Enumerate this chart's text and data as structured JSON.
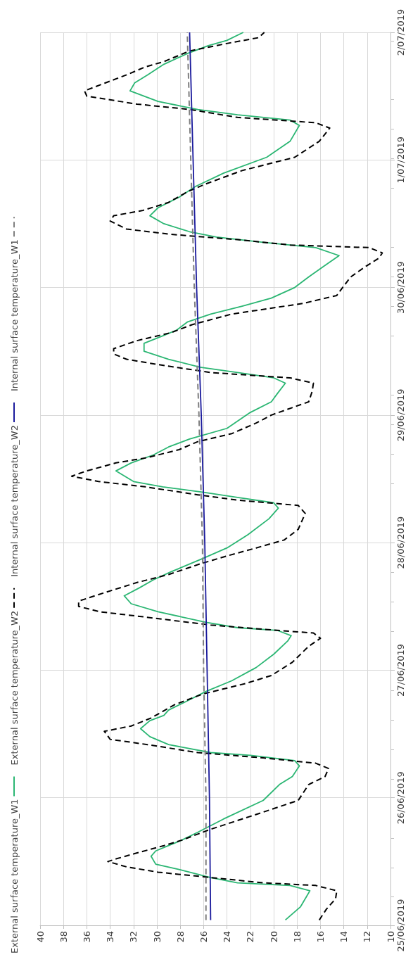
{
  "chart_data": {
    "type": "line",
    "orientation": "horizontal",
    "xlim": [
      40,
      10
    ],
    "xticks": [
      40,
      38,
      36,
      34,
      32,
      30,
      28,
      26,
      24,
      22,
      20,
      18,
      16,
      14,
      12,
      10
    ],
    "ylim": [
      "2019-06-25",
      "2019-07-02"
    ],
    "yticks": [
      {
        "value": "2019-06-25",
        "label": "25/06/2019"
      },
      {
        "value": "2019-06-26",
        "label": "26/06/2019"
      },
      {
        "value": "2019-06-27",
        "label": "27/06/2019"
      },
      {
        "value": "2019-06-28",
        "label": "28/06/2019"
      },
      {
        "value": "2019-06-29",
        "label": "29/06/2019"
      },
      {
        "value": "2019-06-30",
        "label": "30/06/2019"
      },
      {
        "value": "2019-07-01",
        "label": "1/07/2019"
      },
      {
        "value": "2019-07-02",
        "label": "2/07/2019"
      }
    ],
    "grid": true,
    "legend": "left",
    "marker": "none",
    "series": [
      {
        "name": "External surface temperature_W1",
        "color": "#2bb673",
        "line_style": "solid",
        "x": [
          "2019-06-25T01:00",
          "2019-06-25T03:30",
          "2019-06-25T06:30",
          "2019-06-25T07:30",
          "2019-06-25T08:00",
          "2019-06-25T09:00",
          "2019-06-25T10:30",
          "2019-06-25T11:30",
          "2019-06-25T13:00",
          "2019-06-25T14:00",
          "2019-06-25T15:00",
          "2019-06-25T16:00",
          "2019-06-25T17:30",
          "2019-06-25T20:00",
          "2019-06-25T23:30",
          "2019-06-26T02:30",
          "2019-06-26T04:00",
          "2019-06-26T06:00",
          "2019-06-26T07:00",
          "2019-06-26T08:00",
          "2019-06-26T08:30",
          "2019-06-26T10:00",
          "2019-06-26T11:30",
          "2019-06-26T13:00",
          "2019-06-26T14:30",
          "2019-06-26T15:30",
          "2019-06-26T16:30",
          "2019-06-26T18:00",
          "2019-06-26T20:00",
          "2019-06-26T22:00",
          "2019-06-27T00:30",
          "2019-06-27T03:00",
          "2019-06-27T05:30",
          "2019-06-27T06:30",
          "2019-06-27T07:30",
          "2019-06-27T08:00",
          "2019-06-27T09:00",
          "2019-06-27T11:00",
          "2019-06-27T12:30",
          "2019-06-27T14:00",
          "2019-06-27T15:30",
          "2019-06-27T17:00",
          "2019-06-27T18:30",
          "2019-06-27T21:00",
          "2019-06-27T23:00",
          "2019-06-28T01:30",
          "2019-06-28T04:30",
          "2019-06-28T06:30",
          "2019-06-28T07:30",
          "2019-06-28T08:30",
          "2019-06-28T09:30",
          "2019-06-28T10:30",
          "2019-06-28T11:30",
          "2019-06-28T13:30",
          "2019-06-28T15:00",
          "2019-06-28T16:30",
          "2019-06-28T18:00",
          "2019-06-28T19:30",
          "2019-06-28T21:30",
          "2019-06-29T00:30",
          "2019-06-29T02:30",
          "2019-06-29T04:00",
          "2019-06-29T06:00",
          "2019-06-29T07:00",
          "2019-06-29T08:00",
          "2019-06-29T09:00",
          "2019-06-29T10:30",
          "2019-06-29T12:00",
          "2019-06-29T13:30",
          "2019-06-29T15:00",
          "2019-06-29T16:00",
          "2019-06-29T17:30",
          "2019-06-29T19:00",
          "2019-06-29T20:30",
          "2019-06-29T22:00",
          "2019-06-30T00:00",
          "2019-06-30T02:00",
          "2019-06-30T04:00",
          "2019-06-30T06:00",
          "2019-06-30T07:30",
          "2019-06-30T08:30",
          "2019-06-30T09:30",
          "2019-06-30T10:30",
          "2019-06-30T12:00",
          "2019-06-30T13:30",
          "2019-06-30T15:00",
          "2019-06-30T17:00",
          "2019-06-30T19:00",
          "2019-06-30T21:30",
          "2019-07-01T00:30",
          "2019-07-01T03:30",
          "2019-07-01T06:30",
          "2019-07-01T07:30",
          "2019-07-01T08:30",
          "2019-07-01T09:30",
          "2019-07-01T11:00",
          "2019-07-01T13:00",
          "2019-07-01T14:30",
          "2019-07-01T16:00",
          "2019-07-01T18:00",
          "2019-07-01T20:00",
          "2019-07-01T21:30",
          "2019-07-01T22:30",
          "2019-07-02T00:00"
        ],
        "values": [
          19.0,
          17.7,
          16.9,
          18.6,
          23.1,
          25.4,
          28.1,
          30.1,
          30.5,
          30.1,
          29.0,
          27.9,
          26.5,
          24.3,
          20.9,
          19.5,
          18.4,
          17.8,
          18.2,
          22.0,
          25.4,
          29.0,
          30.6,
          31.4,
          30.6,
          29.4,
          29.0,
          27.6,
          25.8,
          23.6,
          21.5,
          20.0,
          18.8,
          18.5,
          19.7,
          23.1,
          25.8,
          29.9,
          32.2,
          32.8,
          31.5,
          30.3,
          28.8,
          26.1,
          24.0,
          22.2,
          20.4,
          19.6,
          20.0,
          23.1,
          26.1,
          29.5,
          32.0,
          33.5,
          32.2,
          30.3,
          29.0,
          27.2,
          24.0,
          22.0,
          20.2,
          19.7,
          19.0,
          20.0,
          23.1,
          26.3,
          29.0,
          31.1,
          31.1,
          29.4,
          28.3,
          27.4,
          25.4,
          22.7,
          20.2,
          18.2,
          17.0,
          15.7,
          14.4,
          16.4,
          20.9,
          24.9,
          27.2,
          29.4,
          30.6,
          29.9,
          28.1,
          26.7,
          24.3,
          20.6,
          18.6,
          17.8,
          18.6,
          23.1,
          26.5,
          29.9,
          32.3,
          31.9,
          30.8,
          29.4,
          27.4,
          25.6,
          24.0,
          22.6
        ]
      },
      {
        "name": "External surface temperature_W2",
        "color": "#000000",
        "line_style": "dashed",
        "x": [
          "2019-06-25T01:00",
          "2019-06-25T03:00",
          "2019-06-25T05:00",
          "2019-06-25T06:30",
          "2019-06-25T07:30",
          "2019-06-25T08:00",
          "2019-06-25T09:00",
          "2019-06-25T10:00",
          "2019-06-25T11:00",
          "2019-06-25T12:00",
          "2019-06-25T12:30",
          "2019-06-25T13:30",
          "2019-06-25T15:00",
          "2019-06-25T16:00",
          "2019-06-25T18:00",
          "2019-06-25T20:30",
          "2019-06-25T23:30",
          "2019-06-26T02:30",
          "2019-06-26T04:00",
          "2019-06-26T05:30",
          "2019-06-26T06:30",
          "2019-06-26T07:30",
          "2019-06-26T08:30",
          "2019-06-26T10:00",
          "2019-06-26T11:00",
          "2019-06-26T12:30",
          "2019-06-26T13:30",
          "2019-06-26T15:00",
          "2019-06-26T17:30",
          "2019-06-26T19:30",
          "2019-06-26T21:30",
          "2019-06-26T23:00",
          "2019-06-27T01:30",
          "2019-06-27T04:30",
          "2019-06-27T06:00",
          "2019-06-27T07:00",
          "2019-06-27T07:30",
          "2019-06-27T08:30",
          "2019-06-27T10:00",
          "2019-06-27T11:00",
          "2019-06-27T12:00",
          "2019-06-27T13:00",
          "2019-06-27T14:30",
          "2019-06-27T16:30",
          "2019-06-27T18:00",
          "2019-06-27T20:00",
          "2019-06-27T21:30",
          "2019-06-27T23:00",
          "2019-06-28T00:30",
          "2019-06-28T02:30",
          "2019-06-28T05:30",
          "2019-06-28T07:00",
          "2019-06-28T08:00",
          "2019-06-28T09:00",
          "2019-06-28T10:30",
          "2019-06-28T11:30",
          "2019-06-28T12:30",
          "2019-06-28T13:30",
          "2019-06-28T15:00",
          "2019-06-28T16:00",
          "2019-06-28T17:30",
          "2019-06-28T19:00",
          "2019-06-28T20:30",
          "2019-06-28T22:30",
          "2019-06-29T00:00",
          "2019-06-29T02:30",
          "2019-06-29T04:30",
          "2019-06-29T06:00",
          "2019-06-29T07:00",
          "2019-06-29T08:00",
          "2019-06-29T09:30",
          "2019-06-29T10:30",
          "2019-06-29T11:30",
          "2019-06-29T12:30",
          "2019-06-29T14:00",
          "2019-06-29T15:30",
          "2019-06-29T17:00",
          "2019-06-29T19:00",
          "2019-06-29T21:00",
          "2019-06-29T22:30",
          "2019-06-30T00:00",
          "2019-06-30T02:00",
          "2019-06-30T04:00",
          "2019-06-30T05:30",
          "2019-06-30T06:30",
          "2019-06-30T07:30",
          "2019-06-30T08:00",
          "2019-06-30T09:00",
          "2019-06-30T10:00",
          "2019-06-30T11:00",
          "2019-06-30T12:30",
          "2019-06-30T13:30",
          "2019-06-30T14:30",
          "2019-06-30T16:00",
          "2019-06-30T18:00",
          "2019-06-30T19:30",
          "2019-06-30T22:00",
          "2019-07-01T00:30",
          "2019-07-01T03:30",
          "2019-07-01T06:00",
          "2019-07-01T07:00",
          "2019-07-01T08:00",
          "2019-07-01T09:30",
          "2019-07-01T10:30",
          "2019-07-01T12:00",
          "2019-07-01T13:00",
          "2019-07-01T14:30",
          "2019-07-01T16:00",
          "2019-07-01T17:30",
          "2019-07-01T18:30",
          "2019-07-01T20:30",
          "2019-07-01T22:00",
          "2019-07-01T23:00",
          "2019-07-02T00:00"
        ],
        "values": [
          16.1,
          15.5,
          14.7,
          14.6,
          16.4,
          20.9,
          25.4,
          29.9,
          32.6,
          34.2,
          33.5,
          31.9,
          29.4,
          27.9,
          25.5,
          22.0,
          17.9,
          17.0,
          15.6,
          15.3,
          16.4,
          20.9,
          26.5,
          30.8,
          34.0,
          34.5,
          32.2,
          30.5,
          28.5,
          26.1,
          22.4,
          20.2,
          18.4,
          17.0,
          16.0,
          16.6,
          19.7,
          25.4,
          31.0,
          34.9,
          36.7,
          36.7,
          34.6,
          31.7,
          29.0,
          26.3,
          24.0,
          21.5,
          19.1,
          17.9,
          17.3,
          17.9,
          23.1,
          26.5,
          31.0,
          35.0,
          37.3,
          36.0,
          33.5,
          30.8,
          28.1,
          26.5,
          23.6,
          21.5,
          20.2,
          17.0,
          16.7,
          16.6,
          18.6,
          25.4,
          29.9,
          32.6,
          33.7,
          33.7,
          31.7,
          28.8,
          27.0,
          23.6,
          17.5,
          14.6,
          14.1,
          13.4,
          12.1,
          11.0,
          10.7,
          11.8,
          18.6,
          23.1,
          28.8,
          32.6,
          34.0,
          33.7,
          31.2,
          29.0,
          27.4,
          25.8,
          22.7,
          18.2,
          16.1,
          15.2,
          16.4,
          23.1,
          27.2,
          31.7,
          36.0,
          36.2,
          34.4,
          32.6,
          31.0,
          29.4,
          27.2,
          23.8,
          21.3,
          20.8
        ]
      },
      {
        "name": "Internal surface temperature_W2",
        "color": "#1a1a9c",
        "line_style": "solid",
        "x": [
          "2019-06-25T01:00",
          "2019-06-26T00:00",
          "2019-06-27T00:00",
          "2019-06-28T00:00",
          "2019-06-29T00:00",
          "2019-06-30T00:00",
          "2019-07-01T00:00",
          "2019-07-02T00:00"
        ],
        "values": [
          25.4,
          25.5,
          25.7,
          25.9,
          26.2,
          26.6,
          26.9,
          27.2
        ]
      },
      {
        "name": "Internal surface temperature_W1",
        "color": "#7f7f7f",
        "line_style": "dashed",
        "x": [
          "2019-06-25T01:00",
          "2019-06-26T00:00",
          "2019-06-27T00:00",
          "2019-06-28T00:00",
          "2019-06-29T00:00",
          "2019-06-30T00:00",
          "2019-07-01T00:00",
          "2019-07-02T00:00"
        ],
        "values": [
          25.8,
          25.8,
          26.0,
          26.1,
          26.4,
          26.8,
          27.1,
          27.4
        ]
      }
    ]
  }
}
